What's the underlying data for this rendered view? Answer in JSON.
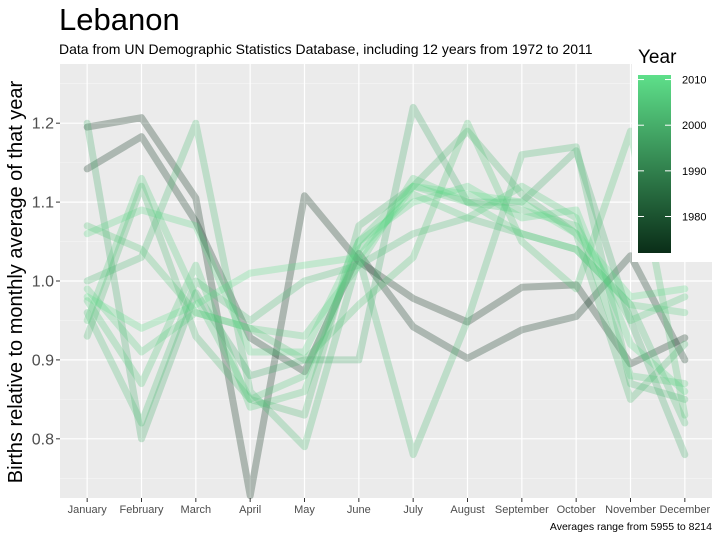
{
  "chart_data": {
    "type": "line",
    "title": "Lebanon",
    "subtitle": "Data from UN Demographic Statistics Database, including 12 years from 1972 to 2011",
    "ylabel": "Births relative to monthly average of that year",
    "xlabel": "",
    "caption": "Averages range from 5955 to 8214",
    "categories": [
      "January",
      "February",
      "March",
      "April",
      "May",
      "June",
      "July",
      "August",
      "September",
      "October",
      "November",
      "December"
    ],
    "ylim": [
      0.725,
      1.275
    ],
    "yticks": [
      0.8,
      0.9,
      1.0,
      1.1,
      1.2
    ],
    "ytick_labels": [
      "0.8",
      "0.9",
      "1.0",
      "1.1",
      "1.2"
    ],
    "grid": true,
    "legend": {
      "title": "Year",
      "position": "right",
      "range": [
        1972,
        2011
      ],
      "ticks": [
        1980,
        1990,
        2000,
        2010
      ],
      "tick_labels": [
        "1980",
        "1990",
        "2000",
        "2010"
      ],
      "color_low": "#0a2e18",
      "color_high": "#5ee08a"
    },
    "series": [
      {
        "year": 1972,
        "values": [
          1.195,
          1.207,
          1.105,
          0.728,
          1.108,
          1.025,
          0.978,
          0.948,
          0.992,
          0.995,
          0.895,
          0.928
        ]
      },
      {
        "year": 1973,
        "values": [
          1.142,
          1.183,
          1.075,
          0.928,
          0.885,
          1.035,
          0.942,
          0.902,
          0.938,
          0.955,
          1.032,
          0.9
        ]
      },
      {
        "year": 2000,
        "values": [
          1.2,
          0.8,
          0.985,
          0.88,
          0.9,
          0.9,
          1.22,
          1.1,
          1.1,
          1.165,
          0.95,
          0.78
        ]
      },
      {
        "year": 2002,
        "values": [
          0.93,
          1.12,
          0.93,
          0.85,
          0.83,
          1.07,
          1.12,
          1.19,
          1.11,
          1.06,
          0.85,
          0.92
        ]
      },
      {
        "year": 2003,
        "values": [
          1.0,
          1.03,
          1.2,
          0.86,
          0.79,
          1.03,
          0.78,
          0.95,
          1.16,
          1.17,
          0.87,
          0.85
        ]
      },
      {
        "year": 2004,
        "values": [
          0.96,
          0.82,
          1.0,
          0.95,
          1.0,
          1.02,
          1.06,
          1.08,
          1.06,
          1.04,
          0.97,
          0.82
        ]
      },
      {
        "year": 2005,
        "values": [
          1.07,
          1.04,
          0.96,
          0.94,
          0.9,
          0.97,
          1.03,
          1.2,
          1.05,
          0.99,
          1.19,
          0.83
        ]
      },
      {
        "year": 2006,
        "values": [
          0.975,
          0.87,
          1.02,
          0.84,
          0.86,
          1.05,
          1.12,
          1.1,
          1.09,
          1.07,
          0.95,
          0.98
        ]
      },
      {
        "year": 2007,
        "values": [
          0.95,
          1.13,
          0.98,
          0.85,
          0.88,
          1.04,
          1.11,
          1.08,
          1.12,
          1.08,
          0.88,
          0.87
        ]
      },
      {
        "year": 2008,
        "values": [
          0.99,
          0.91,
          0.96,
          0.94,
          0.93,
          1.02,
          1.13,
          1.1,
          1.06,
          1.04,
          0.97,
          0.96
        ]
      },
      {
        "year": 2009,
        "values": [
          1.06,
          1.09,
          1.07,
          0.91,
          0.91,
          1.05,
          1.1,
          1.12,
          1.08,
          1.09,
          0.92,
          0.86
        ]
      },
      {
        "year": 2011,
        "values": [
          0.98,
          0.94,
          0.97,
          1.01,
          1.02,
          1.03,
          1.12,
          1.11,
          1.1,
          1.06,
          0.98,
          0.99
        ]
      }
    ]
  }
}
